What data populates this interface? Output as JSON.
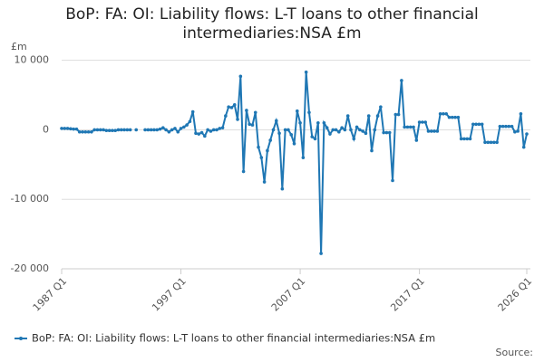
{
  "chart_data": {
    "type": "line",
    "title": "BoP: FA: OI: Liability flows: L-T loans to other financial intermediaries:NSA £m",
    "y_label": "£m",
    "source": "Source:",
    "categories": [
      "1987 Q1",
      null,
      null,
      null,
      null,
      null,
      null,
      null,
      null,
      null,
      null,
      null,
      null,
      null,
      null,
      null,
      null,
      null,
      null,
      null,
      null,
      null,
      null,
      null,
      null,
      null,
      null,
      null,
      null,
      null,
      null,
      null,
      null,
      null,
      null,
      null,
      null,
      null,
      null,
      null,
      "1997 Q1",
      null,
      null,
      null,
      null,
      null,
      null,
      null,
      null,
      null,
      null,
      null,
      null,
      null,
      null,
      null,
      null,
      null,
      null,
      null,
      null,
      null,
      null,
      null,
      null,
      null,
      null,
      null,
      null,
      null,
      null,
      null,
      null,
      null,
      null,
      null,
      null,
      null,
      null,
      null,
      "2007 Q1",
      null,
      null,
      null,
      null,
      null,
      null,
      null,
      null,
      null,
      null,
      null,
      null,
      null,
      null,
      null,
      null,
      null,
      null,
      null,
      null,
      null,
      null,
      null,
      null,
      null,
      null,
      null,
      null,
      null,
      null,
      null,
      null,
      null,
      null,
      null,
      null,
      null,
      null,
      null,
      "2017 Q1",
      null,
      null,
      null,
      null,
      null,
      null,
      null,
      null,
      null,
      null,
      null,
      null,
      null,
      null,
      null,
      null,
      null,
      null,
      null,
      null,
      null,
      null,
      null,
      null,
      null,
      null,
      null,
      null,
      null,
      null,
      null,
      null,
      null,
      null,
      null,
      "2026 Q1"
    ],
    "series": [
      {
        "name": "BoP: FA: OI: Liability flows: L-T loans to other financial intermediaries:NSA £m",
        "color": "#1f77b4",
        "values": [
          200,
          200,
          200,
          150,
          100,
          100,
          -300,
          -300,
          -300,
          -300,
          -300,
          0,
          0,
          0,
          0,
          -100,
          -100,
          -100,
          -100,
          0,
          0,
          0,
          0,
          0,
          null,
          0,
          null,
          null,
          0,
          0,
          0,
          0,
          0,
          100,
          300,
          0,
          -300,
          0,
          200,
          -300,
          200,
          400,
          700,
          1200,
          2600,
          -500,
          -600,
          -400,
          -900,
          0,
          -200,
          0,
          0,
          200,
          300,
          2000,
          3300,
          3200,
          3600,
          1500,
          7700,
          -6000,
          2800,
          800,
          700,
          2500,
          -2500,
          -4000,
          -7500,
          -3000,
          -1500,
          0,
          1300,
          -500,
          -8500,
          0,
          0,
          -700,
          -2000,
          2700,
          1000,
          -4000,
          8300,
          2500,
          -1000,
          -1300,
          1000,
          -17800,
          1000,
          300,
          -600,
          0,
          0,
          -300,
          300,
          0,
          2000,
          0,
          -1300,
          400,
          0,
          -200,
          -500,
          2000,
          -3000,
          0,
          2000,
          3300,
          -400,
          -400,
          -400,
          -7300,
          2200,
          2200,
          7100,
          400,
          400,
          400,
          400,
          -1500,
          1100,
          1100,
          1100,
          -200,
          -200,
          -200,
          -200,
          2300,
          2300,
          2300,
          1800,
          1800,
          1800,
          1800,
          -1300,
          -1300,
          -1300,
          -1300,
          800,
          800,
          800,
          800,
          -1800,
          -1800,
          -1800,
          -1800,
          -1800,
          500,
          500,
          500,
          500,
          500,
          -300,
          -200,
          2300,
          -2500,
          -600
        ]
      }
    ],
    "ylim": [
      -20000,
      11000
    ],
    "yticks": [
      {
        "value": 10000,
        "label": "10 000"
      },
      0,
      {
        "value": -10000,
        "label": "-10 000"
      },
      {
        "value": -20000,
        "label": "-20 000"
      }
    ],
    "grid": true
  }
}
